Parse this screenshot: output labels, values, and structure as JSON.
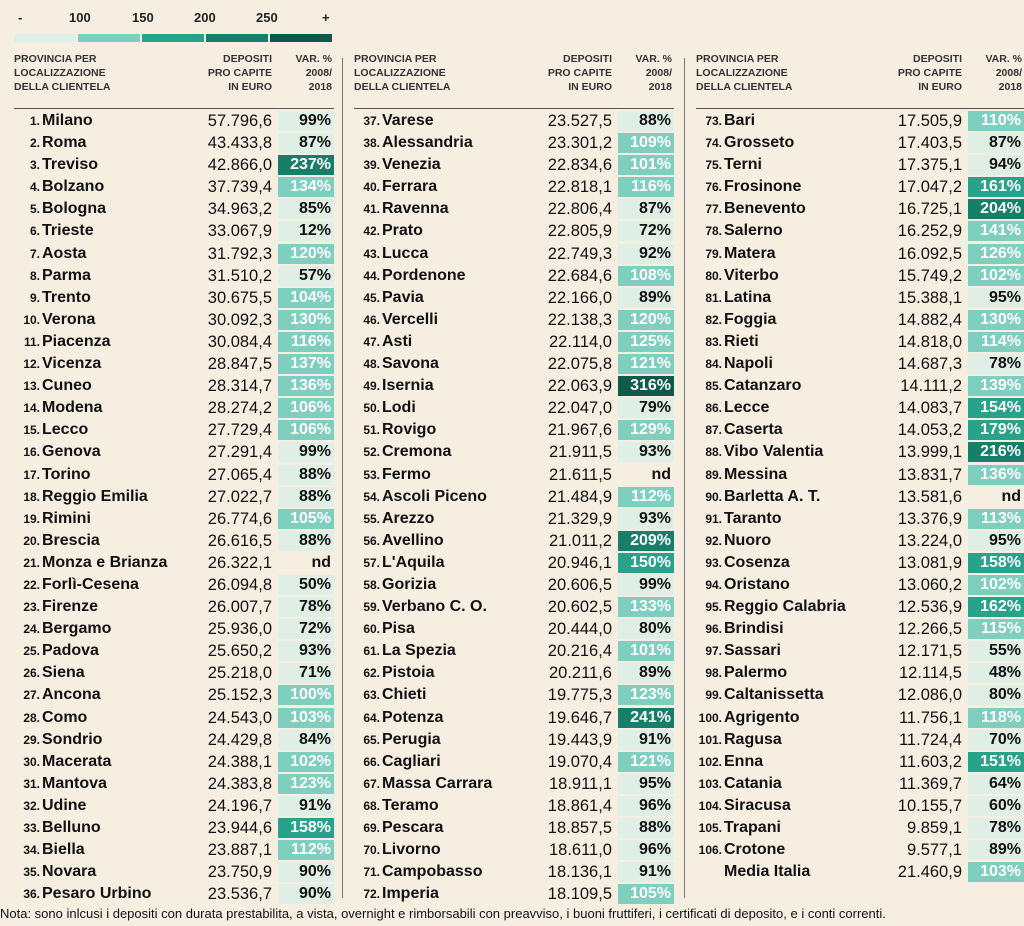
{
  "legend": {
    "labels": [
      "-",
      "100",
      "150",
      "200",
      "250",
      "+"
    ],
    "colors": [
      "#e0efe6",
      "#7fcfc0",
      "#26a38a",
      "#167f6a",
      "#0d5a4b"
    ]
  },
  "headers": {
    "province": "PROVINCIA PER LOCALIZZAZIONE DELLA CLIENTELA",
    "province_lines": [
      "PROVINCIA PER",
      "LOCALIZZAZIONE",
      "DELLA CLIENTELA"
    ],
    "deposits_lines": [
      "DEPOSITI",
      "PRO CAPITE",
      "IN EURO"
    ],
    "var_lines": [
      "VAR. %",
      "2008/",
      "2018"
    ]
  },
  "rows": [
    {
      "rank": "1.",
      "name": "Milano",
      "deposits": "57.796,6",
      "var": "99%",
      "band": 0
    },
    {
      "rank": "2.",
      "name": "Roma",
      "deposits": "43.433,8",
      "var": "87%",
      "band": 0
    },
    {
      "rank": "3.",
      "name": "Treviso",
      "deposits": "42.866,0",
      "var": "237%",
      "band": 3
    },
    {
      "rank": "4.",
      "name": "Bolzano",
      "deposits": "37.739,4",
      "var": "134%",
      "band": 1
    },
    {
      "rank": "5.",
      "name": "Bologna",
      "deposits": "34.963,2",
      "var": "85%",
      "band": 0
    },
    {
      "rank": "6.",
      "name": "Trieste",
      "deposits": "33.067,9",
      "var": "12%",
      "band": 0
    },
    {
      "rank": "7.",
      "name": "Aosta",
      "deposits": "31.792,3",
      "var": "120%",
      "band": 1
    },
    {
      "rank": "8.",
      "name": "Parma",
      "deposits": "31.510,2",
      "var": "57%",
      "band": 0
    },
    {
      "rank": "9.",
      "name": "Trento",
      "deposits": "30.675,5",
      "var": "104%",
      "band": 1
    },
    {
      "rank": "10.",
      "name": "Verona",
      "deposits": "30.092,3",
      "var": "130%",
      "band": 1
    },
    {
      "rank": "11.",
      "name": "Piacenza",
      "deposits": "30.084,4",
      "var": "116%",
      "band": 1
    },
    {
      "rank": "12.",
      "name": "Vicenza",
      "deposits": "28.847,5",
      "var": "137%",
      "band": 1
    },
    {
      "rank": "13.",
      "name": "Cuneo",
      "deposits": "28.314,7",
      "var": "136%",
      "band": 1
    },
    {
      "rank": "14.",
      "name": "Modena",
      "deposits": "28.274,2",
      "var": "106%",
      "band": 1
    },
    {
      "rank": "15.",
      "name": "Lecco",
      "deposits": "27.729,4",
      "var": "106%",
      "band": 1
    },
    {
      "rank": "16.",
      "name": "Genova",
      "deposits": "27.291,4",
      "var": "99%",
      "band": 0
    },
    {
      "rank": "17.",
      "name": "Torino",
      "deposits": "27.065,4",
      "var": "88%",
      "band": 0
    },
    {
      "rank": "18.",
      "name": "Reggio Emilia",
      "deposits": "27.022,7",
      "var": "88%",
      "band": 0
    },
    {
      "rank": "19.",
      "name": "Rimini",
      "deposits": "26.774,6",
      "var": "105%",
      "band": 1
    },
    {
      "rank": "20.",
      "name": "Brescia",
      "deposits": "26.616,5",
      "var": "88%",
      "band": 0
    },
    {
      "rank": "21.",
      "name": "Monza e Brianza",
      "deposits": "26.322,1",
      "var": "nd",
      "band": -1
    },
    {
      "rank": "22.",
      "name": "Forlì-Cesena",
      "deposits": "26.094,8",
      "var": "50%",
      "band": 0
    },
    {
      "rank": "23.",
      "name": "Firenze",
      "deposits": "26.007,7",
      "var": "78%",
      "band": 0
    },
    {
      "rank": "24.",
      "name": "Bergamo",
      "deposits": "25.936,0",
      "var": "72%",
      "band": 0
    },
    {
      "rank": "25.",
      "name": "Padova",
      "deposits": "25.650,2",
      "var": "93%",
      "band": 0
    },
    {
      "rank": "26.",
      "name": "Siena",
      "deposits": "25.218,0",
      "var": "71%",
      "band": 0
    },
    {
      "rank": "27.",
      "name": "Ancona",
      "deposits": "25.152,3",
      "var": "100%",
      "band": 1
    },
    {
      "rank": "28.",
      "name": "Como",
      "deposits": "24.543,0",
      "var": "103%",
      "band": 1
    },
    {
      "rank": "29.",
      "name": "Sondrio",
      "deposits": "24.429,8",
      "var": "84%",
      "band": 0
    },
    {
      "rank": "30.",
      "name": "Macerata",
      "deposits": "24.388,1",
      "var": "102%",
      "band": 1
    },
    {
      "rank": "31.",
      "name": "Mantova",
      "deposits": "24.383,8",
      "var": "123%",
      "band": 1
    },
    {
      "rank": "32.",
      "name": "Udine",
      "deposits": "24.196,7",
      "var": "91%",
      "band": 0
    },
    {
      "rank": "33.",
      "name": "Belluno",
      "deposits": "23.944,6",
      "var": "158%",
      "band": 2
    },
    {
      "rank": "34.",
      "name": "Biella",
      "deposits": "23.887,1",
      "var": "112%",
      "band": 1
    },
    {
      "rank": "35.",
      "name": "Novara",
      "deposits": "23.750,9",
      "var": "90%",
      "band": 0
    },
    {
      "rank": "36.",
      "name": "Pesaro Urbino",
      "deposits": "23.536,7",
      "var": "90%",
      "band": 0
    },
    {
      "rank": "37.",
      "name": "Varese",
      "deposits": "23.527,5",
      "var": "88%",
      "band": 0
    },
    {
      "rank": "38.",
      "name": "Alessandria",
      "deposits": "23.301,2",
      "var": "109%",
      "band": 1
    },
    {
      "rank": "39.",
      "name": "Venezia",
      "deposits": "22.834,6",
      "var": "101%",
      "band": 1
    },
    {
      "rank": "40.",
      "name": "Ferrara",
      "deposits": "22.818,1",
      "var": "116%",
      "band": 1
    },
    {
      "rank": "41.",
      "name": "Ravenna",
      "deposits": "22.806,4",
      "var": "87%",
      "band": 0
    },
    {
      "rank": "42.",
      "name": "Prato",
      "deposits": "22.805,9",
      "var": "72%",
      "band": 0
    },
    {
      "rank": "43.",
      "name": "Lucca",
      "deposits": "22.749,3",
      "var": "92%",
      "band": 0
    },
    {
      "rank": "44.",
      "name": "Pordenone",
      "deposits": "22.684,6",
      "var": "108%",
      "band": 1
    },
    {
      "rank": "45.",
      "name": "Pavia",
      "deposits": "22.166,0",
      "var": "89%",
      "band": 0
    },
    {
      "rank": "46.",
      "name": "Vercelli",
      "deposits": "22.138,3",
      "var": "120%",
      "band": 1
    },
    {
      "rank": "47.",
      "name": "Asti",
      "deposits": "22.114,0",
      "var": "125%",
      "band": 1
    },
    {
      "rank": "48.",
      "name": "Savona",
      "deposits": "22.075,8",
      "var": "121%",
      "band": 1
    },
    {
      "rank": "49.",
      "name": "Isernia",
      "deposits": "22.063,9",
      "var": "316%",
      "band": 4
    },
    {
      "rank": "50.",
      "name": "Lodi",
      "deposits": "22.047,0",
      "var": "79%",
      "band": 0
    },
    {
      "rank": "51.",
      "name": "Rovigo",
      "deposits": "21.967,6",
      "var": "129%",
      "band": 1
    },
    {
      "rank": "52.",
      "name": "Cremona",
      "deposits": "21.911,5",
      "var": "93%",
      "band": 0
    },
    {
      "rank": "53.",
      "name": "Fermo",
      "deposits": "21.611,5",
      "var": "nd",
      "band": -1
    },
    {
      "rank": "54.",
      "name": "Ascoli Piceno",
      "deposits": "21.484,9",
      "var": "112%",
      "band": 1
    },
    {
      "rank": "55.",
      "name": "Arezzo",
      "deposits": "21.329,9",
      "var": "93%",
      "band": 0
    },
    {
      "rank": "56.",
      "name": "Avellino",
      "deposits": "21.011,2",
      "var": "209%",
      "band": 3
    },
    {
      "rank": "57.",
      "name": "L'Aquila",
      "deposits": "20.946,1",
      "var": "150%",
      "band": 2
    },
    {
      "rank": "58.",
      "name": "Gorizia",
      "deposits": "20.606,5",
      "var": "99%",
      "band": 0
    },
    {
      "rank": "59.",
      "name": "Verbano C. O.",
      "deposits": "20.602,5",
      "var": "133%",
      "band": 1
    },
    {
      "rank": "60.",
      "name": "Pisa",
      "deposits": "20.444,0",
      "var": "80%",
      "band": 0
    },
    {
      "rank": "61.",
      "name": "La Spezia",
      "deposits": "20.216,4",
      "var": "101%",
      "band": 1
    },
    {
      "rank": "62.",
      "name": "Pistoia",
      "deposits": "20.211,6",
      "var": "89%",
      "band": 0
    },
    {
      "rank": "63.",
      "name": "Chieti",
      "deposits": "19.775,3",
      "var": "123%",
      "band": 1
    },
    {
      "rank": "64.",
      "name": "Potenza",
      "deposits": "19.646,7",
      "var": "241%",
      "band": 3
    },
    {
      "rank": "65.",
      "name": "Perugia",
      "deposits": "19.443,9",
      "var": "91%",
      "band": 0
    },
    {
      "rank": "66.",
      "name": "Cagliari",
      "deposits": "19.070,4",
      "var": "121%",
      "band": 1
    },
    {
      "rank": "67.",
      "name": "Massa Carrara",
      "deposits": "18.911,1",
      "var": "95%",
      "band": 0
    },
    {
      "rank": "68.",
      "name": "Teramo",
      "deposits": "18.861,4",
      "var": "96%",
      "band": 0
    },
    {
      "rank": "69.",
      "name": "Pescara",
      "deposits": "18.857,5",
      "var": "88%",
      "band": 0
    },
    {
      "rank": "70.",
      "name": "Livorno",
      "deposits": "18.611,0",
      "var": "96%",
      "band": 0
    },
    {
      "rank": "71.",
      "name": "Campobasso",
      "deposits": "18.136,1",
      "var": "91%",
      "band": 0
    },
    {
      "rank": "72.",
      "name": "Imperia",
      "deposits": "18.109,5",
      "var": "105%",
      "band": 1
    },
    {
      "rank": "73.",
      "name": "Bari",
      "deposits": "17.505,9",
      "var": "110%",
      "band": 1
    },
    {
      "rank": "74.",
      "name": "Grosseto",
      "deposits": "17.403,5",
      "var": "87%",
      "band": 0
    },
    {
      "rank": "75.",
      "name": "Terni",
      "deposits": "17.375,1",
      "var": "94%",
      "band": 0
    },
    {
      "rank": "76.",
      "name": "Frosinone",
      "deposits": "17.047,2",
      "var": "161%",
      "band": 2
    },
    {
      "rank": "77.",
      "name": "Benevento",
      "deposits": "16.725,1",
      "var": "204%",
      "band": 3
    },
    {
      "rank": "78.",
      "name": "Salerno",
      "deposits": "16.252,9",
      "var": "141%",
      "band": 1
    },
    {
      "rank": "79.",
      "name": "Matera",
      "deposits": "16.092,5",
      "var": "126%",
      "band": 1
    },
    {
      "rank": "80.",
      "name": "Viterbo",
      "deposits": "15.749,2",
      "var": "102%",
      "band": 1
    },
    {
      "rank": "81.",
      "name": "Latina",
      "deposits": "15.388,1",
      "var": "95%",
      "band": 0
    },
    {
      "rank": "82.",
      "name": "Foggia",
      "deposits": "14.882,4",
      "var": "130%",
      "band": 1
    },
    {
      "rank": "83.",
      "name": "Rieti",
      "deposits": "14.818,0",
      "var": "114%",
      "band": 1
    },
    {
      "rank": "84.",
      "name": "Napoli",
      "deposits": "14.687,3",
      "var": "78%",
      "band": 0
    },
    {
      "rank": "85.",
      "name": "Catanzaro",
      "deposits": "14.111,2",
      "var": "139%",
      "band": 1
    },
    {
      "rank": "86.",
      "name": "Lecce",
      "deposits": "14.083,7",
      "var": "154%",
      "band": 2
    },
    {
      "rank": "87.",
      "name": "Caserta",
      "deposits": "14.053,2",
      "var": "179%",
      "band": 2
    },
    {
      "rank": "88.",
      "name": "Vibo Valentia",
      "deposits": "13.999,1",
      "var": "216%",
      "band": 3
    },
    {
      "rank": "89.",
      "name": "Messina",
      "deposits": "13.831,7",
      "var": "136%",
      "band": 1
    },
    {
      "rank": "90.",
      "name": "Barletta A. T.",
      "deposits": "13.581,6",
      "var": "nd",
      "band": -1
    },
    {
      "rank": "91.",
      "name": "Taranto",
      "deposits": "13.376,9",
      "var": "113%",
      "band": 1
    },
    {
      "rank": "92.",
      "name": "Nuoro",
      "deposits": "13.224,0",
      "var": "95%",
      "band": 0
    },
    {
      "rank": "93.",
      "name": "Cosenza",
      "deposits": "13.081,9",
      "var": "158%",
      "band": 2
    },
    {
      "rank": "94.",
      "name": "Oristano",
      "deposits": "13.060,2",
      "var": "102%",
      "band": 1
    },
    {
      "rank": "95.",
      "name": "Reggio Calabria",
      "deposits": "12.536,9",
      "var": "162%",
      "band": 2
    },
    {
      "rank": "96.",
      "name": "Brindisi",
      "deposits": "12.266,5",
      "var": "115%",
      "band": 1
    },
    {
      "rank": "97.",
      "name": "Sassari",
      "deposits": "12.171,5",
      "var": "55%",
      "band": 0
    },
    {
      "rank": "98.",
      "name": "Palermo",
      "deposits": "12.114,5",
      "var": "48%",
      "band": 0
    },
    {
      "rank": "99.",
      "name": "Caltanissetta",
      "deposits": "12.086,0",
      "var": "80%",
      "band": 0
    },
    {
      "rank": "100.",
      "name": "Agrigento",
      "deposits": "11.756,1",
      "var": "118%",
      "band": 1
    },
    {
      "rank": "101.",
      "name": "Ragusa",
      "deposits": "11.724,4",
      "var": "70%",
      "band": 0
    },
    {
      "rank": "102.",
      "name": "Enna",
      "deposits": "11.603,2",
      "var": "151%",
      "band": 2
    },
    {
      "rank": "103.",
      "name": "Catania",
      "deposits": "11.369,7",
      "var": "64%",
      "band": 0
    },
    {
      "rank": "104.",
      "name": "Siracusa",
      "deposits": "10.155,7",
      "var": "60%",
      "band": 0
    },
    {
      "rank": "105.",
      "name": "Trapani",
      "deposits": "9.859,1",
      "var": "78%",
      "band": 0
    },
    {
      "rank": "106.",
      "name": "Crotone",
      "deposits": "9.577,1",
      "var": "89%",
      "band": 0
    }
  ],
  "average": {
    "name": "Media Italia",
    "deposits": "21.460,9",
    "var": "103%",
    "band": 1
  },
  "note": "Nota: sono inlcusi i depositi con durata prestabilita, a vista, overnight e rimborsabili con preavviso, i buoni fruttiferi, i certificati di deposito, e i conti correnti."
}
